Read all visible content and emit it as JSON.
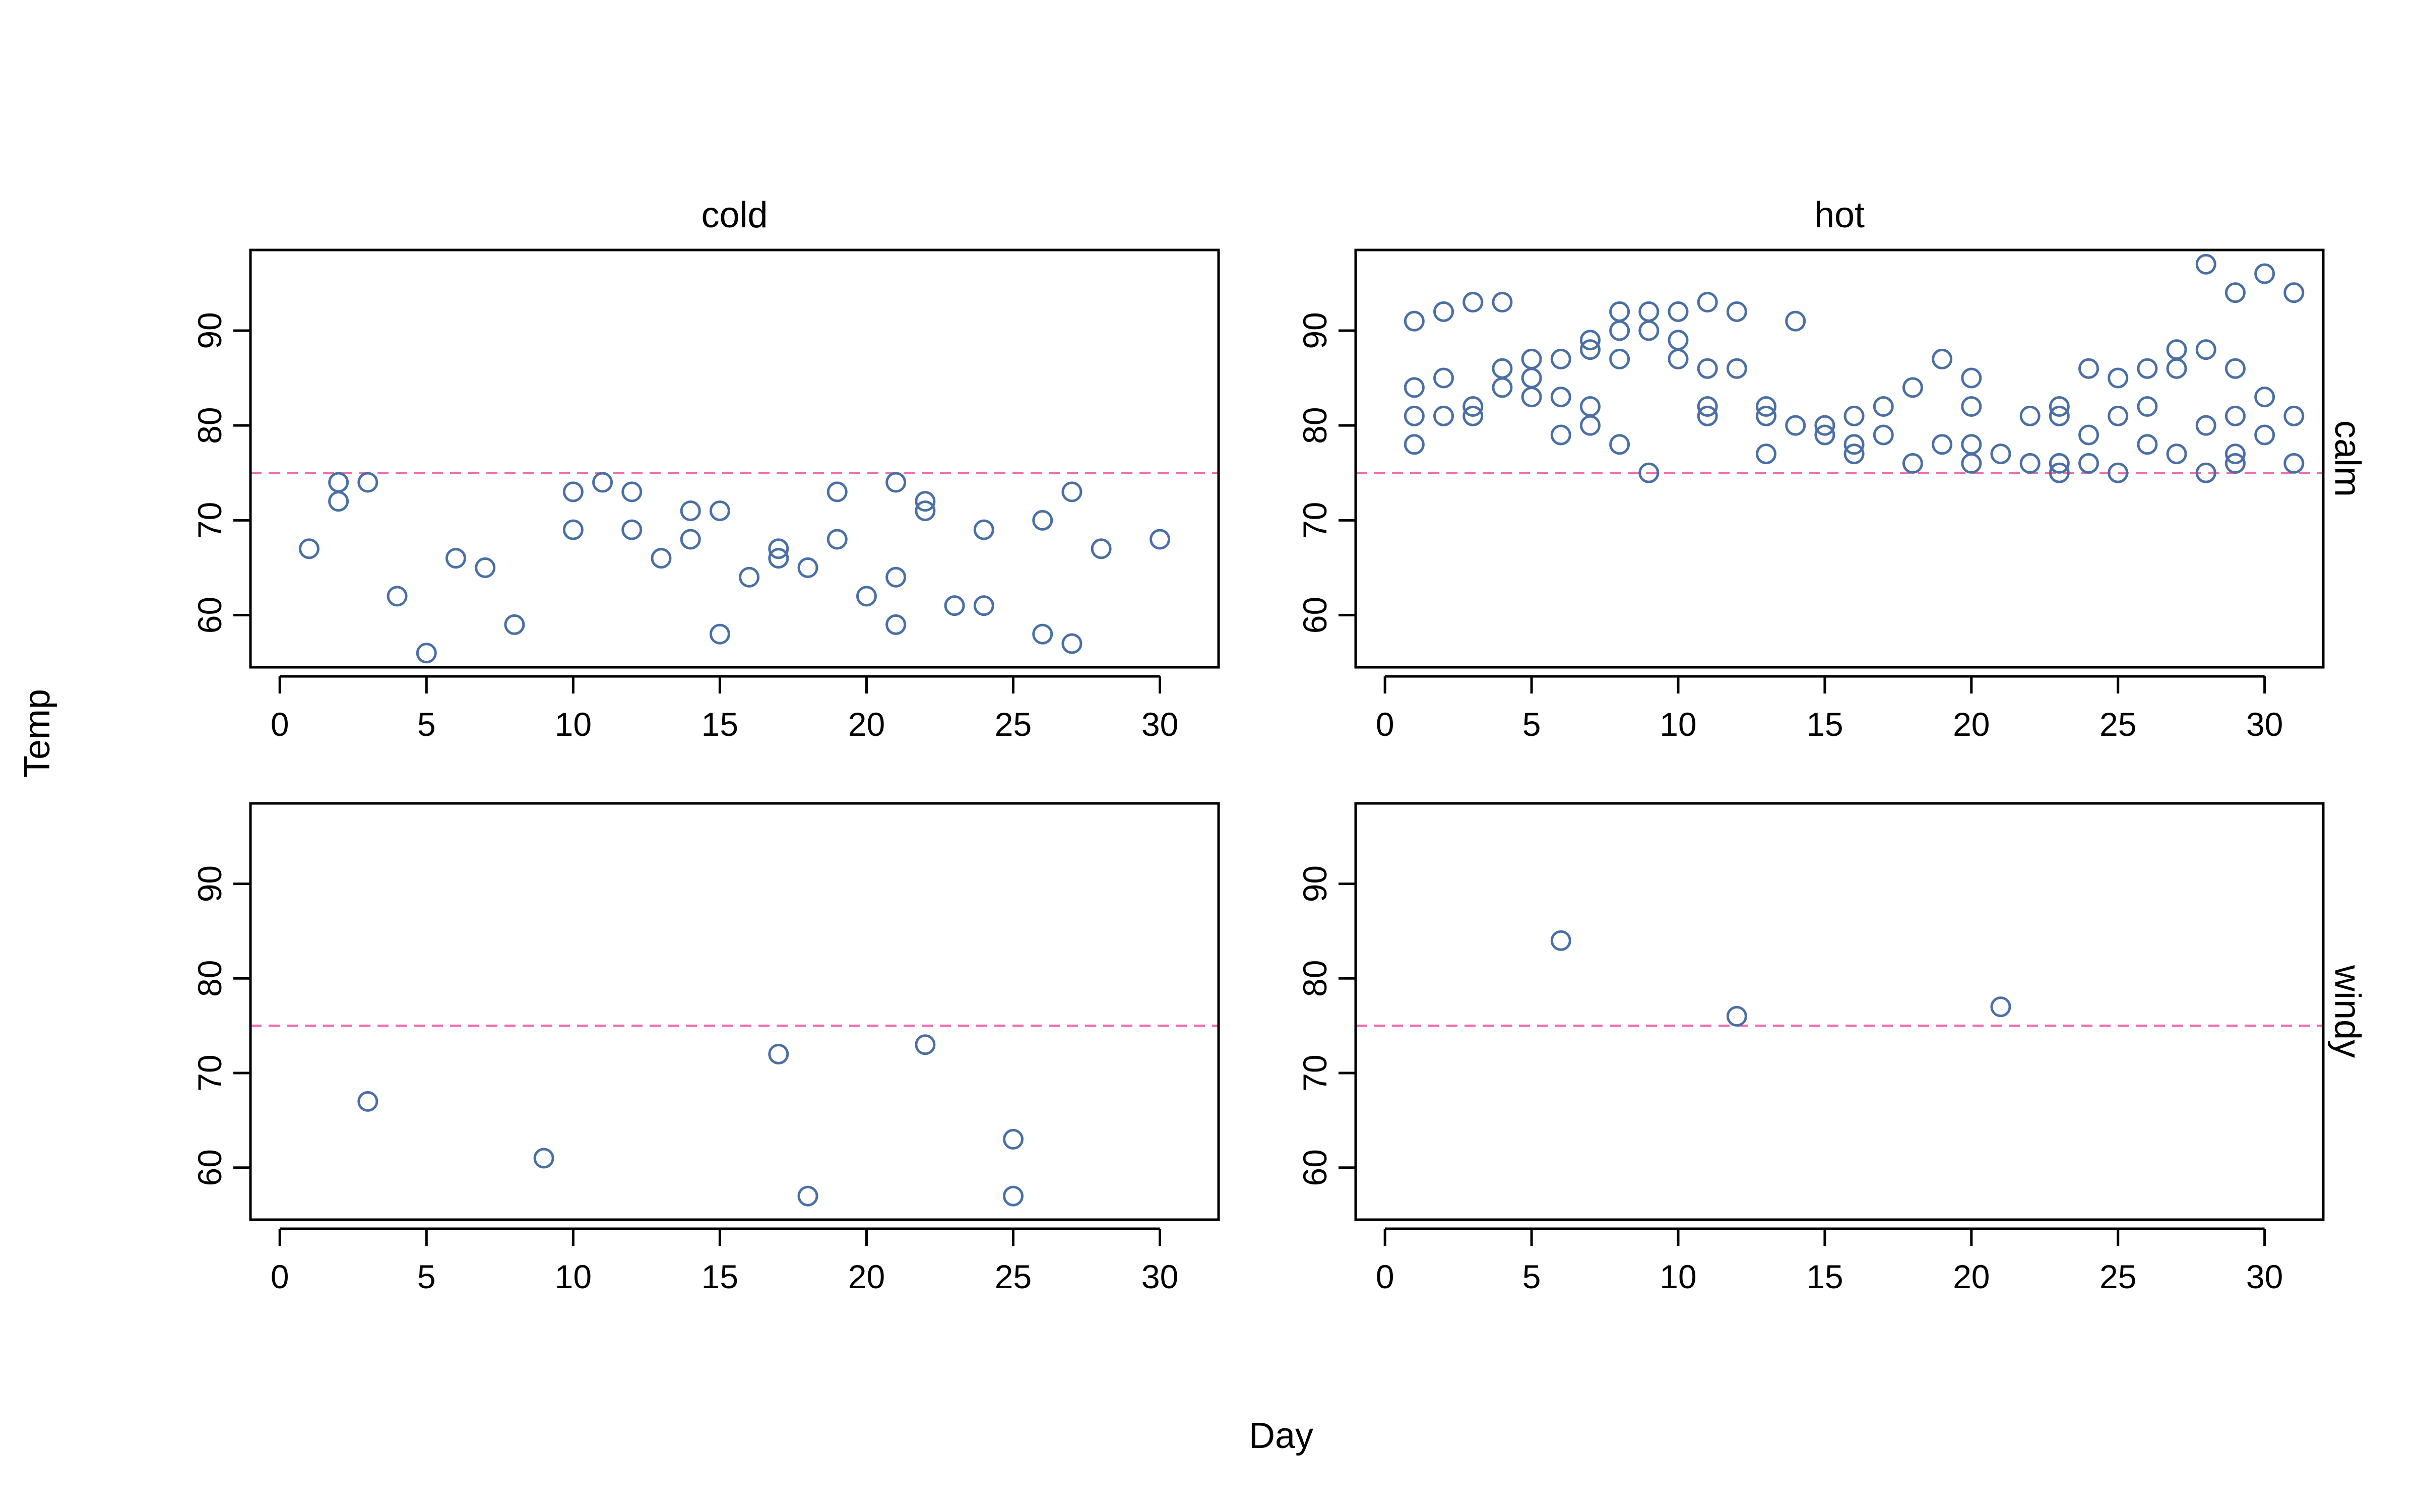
{
  "colors": {
    "point": "#4A6FA5",
    "reference_line": "#F06BB0",
    "axis": "#000000"
  },
  "chart_data": {
    "type": "scatter",
    "xlabel": "Day",
    "ylabel": "Temp",
    "reference_y": 75,
    "xlim": [
      -1,
      32
    ],
    "ylim": [
      54.5,
      98.5
    ],
    "xticks": [
      0,
      5,
      10,
      15,
      20,
      25,
      30
    ],
    "yticks": [
      60,
      70,
      80,
      90
    ],
    "column_labels": [
      "cold",
      "hot"
    ],
    "row_labels": [
      "calm",
      "windy"
    ],
    "panels": [
      {
        "column": "cold",
        "row": "calm",
        "points": [
          [
            1,
            67
          ],
          [
            2,
            74
          ],
          [
            2,
            72
          ],
          [
            3,
            74
          ],
          [
            4,
            62
          ],
          [
            5,
            56
          ],
          [
            6,
            66
          ],
          [
            7,
            65
          ],
          [
            8,
            59
          ],
          [
            10,
            73
          ],
          [
            10,
            69
          ],
          [
            11,
            74
          ],
          [
            12,
            73
          ],
          [
            12,
            69
          ],
          [
            13,
            66
          ],
          [
            14,
            71
          ],
          [
            14,
            68
          ],
          [
            15,
            71
          ],
          [
            15,
            58
          ],
          [
            16,
            64
          ],
          [
            17,
            67
          ],
          [
            17,
            66
          ],
          [
            18,
            65
          ],
          [
            19,
            73
          ],
          [
            19,
            68
          ],
          [
            20,
            62
          ],
          [
            21,
            74
          ],
          [
            21,
            64
          ],
          [
            21,
            59
          ],
          [
            22,
            72
          ],
          [
            22,
            71
          ],
          [
            23,
            61
          ],
          [
            24,
            69
          ],
          [
            24,
            61
          ],
          [
            26,
            70
          ],
          [
            26,
            58
          ],
          [
            27,
            73
          ],
          [
            27,
            57
          ],
          [
            28,
            67
          ],
          [
            30,
            68
          ]
        ]
      },
      {
        "column": "hot",
        "row": "calm",
        "points": [
          [
            1,
            91
          ],
          [
            1,
            84
          ],
          [
            1,
            81
          ],
          [
            1,
            78
          ],
          [
            2,
            92
          ],
          [
            2,
            85
          ],
          [
            2,
            81
          ],
          [
            3,
            93
          ],
          [
            3,
            82
          ],
          [
            3,
            81
          ],
          [
            4,
            93
          ],
          [
            4,
            86
          ],
          [
            4,
            84
          ],
          [
            5,
            87
          ],
          [
            5,
            85
          ],
          [
            5,
            83
          ],
          [
            6,
            87
          ],
          [
            6,
            83
          ],
          [
            6,
            79
          ],
          [
            7,
            89
          ],
          [
            7,
            88
          ],
          [
            7,
            82
          ],
          [
            7,
            80
          ],
          [
            8,
            92
          ],
          [
            8,
            90
          ],
          [
            8,
            87
          ],
          [
            8,
            78
          ],
          [
            9,
            92
          ],
          [
            9,
            90
          ],
          [
            9,
            75
          ],
          [
            10,
            92
          ],
          [
            10,
            89
          ],
          [
            10,
            87
          ],
          [
            11,
            93
          ],
          [
            11,
            86
          ],
          [
            11,
            82
          ],
          [
            11,
            81
          ],
          [
            12,
            92
          ],
          [
            12,
            86
          ],
          [
            13,
            82
          ],
          [
            13,
            81
          ],
          [
            13,
            77
          ],
          [
            14,
            91
          ],
          [
            14,
            80
          ],
          [
            15,
            80
          ],
          [
            15,
            79
          ],
          [
            16,
            81
          ],
          [
            16,
            78
          ],
          [
            16,
            77
          ],
          [
            17,
            82
          ],
          [
            17,
            79
          ],
          [
            18,
            84
          ],
          [
            18,
            76
          ],
          [
            19,
            87
          ],
          [
            19,
            78
          ],
          [
            20,
            85
          ],
          [
            20,
            82
          ],
          [
            20,
            78
          ],
          [
            20,
            76
          ],
          [
            21,
            77
          ],
          [
            22,
            81
          ],
          [
            22,
            76
          ],
          [
            23,
            82
          ],
          [
            23,
            81
          ],
          [
            23,
            76
          ],
          [
            23,
            75
          ],
          [
            24,
            86
          ],
          [
            24,
            79
          ],
          [
            24,
            76
          ],
          [
            25,
            85
          ],
          [
            25,
            81
          ],
          [
            25,
            75
          ],
          [
            26,
            86
          ],
          [
            26,
            82
          ],
          [
            26,
            78
          ],
          [
            27,
            88
          ],
          [
            27,
            86
          ],
          [
            27,
            77
          ],
          [
            28,
            97
          ],
          [
            28,
            88
          ],
          [
            28,
            80
          ],
          [
            28,
            75
          ],
          [
            29,
            94
          ],
          [
            29,
            86
          ],
          [
            29,
            81
          ],
          [
            29,
            77
          ],
          [
            29,
            76
          ],
          [
            30,
            96
          ],
          [
            30,
            83
          ],
          [
            30,
            79
          ],
          [
            31,
            94
          ],
          [
            31,
            81
          ],
          [
            31,
            76
          ]
        ]
      },
      {
        "column": "cold",
        "row": "windy",
        "points": [
          [
            3,
            67
          ],
          [
            9,
            61
          ],
          [
            17,
            72
          ],
          [
            18,
            57
          ],
          [
            22,
            73
          ],
          [
            25,
            63
          ],
          [
            25,
            57
          ]
        ]
      },
      {
        "column": "hot",
        "row": "windy",
        "points": [
          [
            6,
            84
          ],
          [
            12,
            76
          ],
          [
            21,
            77
          ]
        ]
      }
    ]
  }
}
